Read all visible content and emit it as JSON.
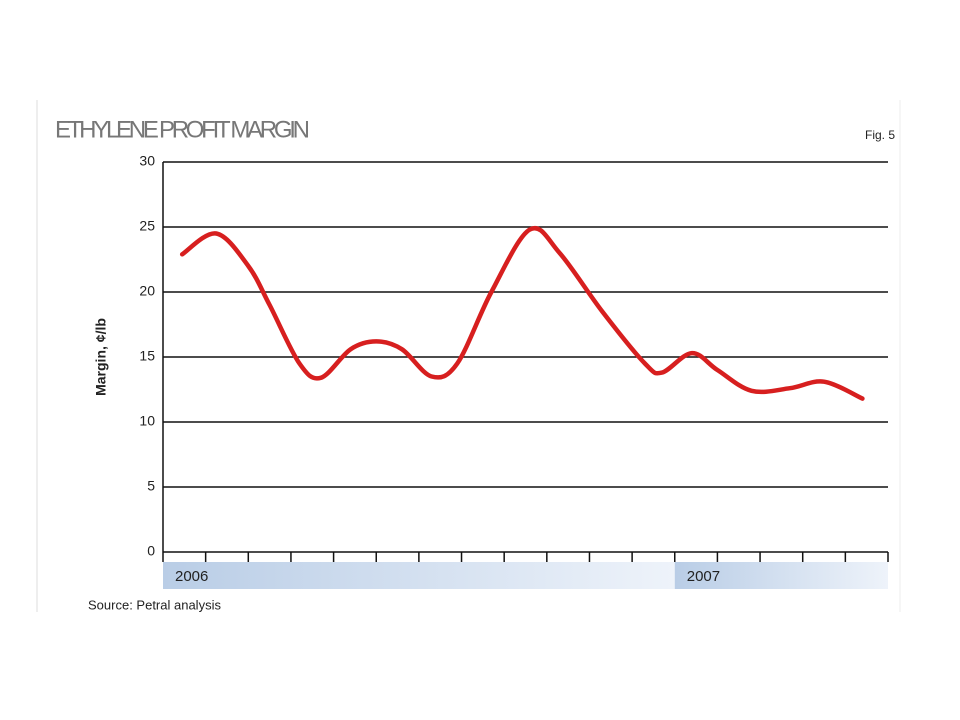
{
  "chart_data": {
    "type": "line",
    "title": "ETHYLENE PROFIT MARGIN",
    "figure_label": "Fig. 5",
    "y_label": "Margin, ¢/lb",
    "source": "Source: Petral analysis",
    "periods": [
      {
        "label": "2006",
        "start": 0,
        "end": 12
      },
      {
        "label": "2007",
        "start": 12,
        "end": 17
      }
    ],
    "x": [
      0.45,
      1.25,
      2,
      2.5,
      3.2,
      3.7,
      4.4,
      5,
      5.6,
      6.3,
      6.9,
      7.7,
      8.6,
      9.3,
      10.3,
      11.3,
      11.7,
      12.4,
      13,
      13.8,
      14.7,
      15.5,
      16.4
    ],
    "values": [
      22.9,
      24.5,
      22,
      19,
      14.5,
      13.4,
      15.6,
      16.2,
      15.6,
      13.5,
      14.5,
      20,
      24.8,
      23,
      18.5,
      14.5,
      13.8,
      15.3,
      14,
      12.4,
      12.6,
      13.1,
      11.8
    ],
    "color": "#d71f1f",
    "xlim": [
      0,
      17
    ],
    "xticks": [
      0,
      1,
      2,
      3,
      4,
      5,
      6,
      7,
      8,
      9,
      10,
      11,
      12,
      13,
      14,
      15,
      16,
      17
    ],
    "ylim": [
      0,
      30
    ],
    "yticks": [
      0,
      5,
      10,
      15,
      20,
      25,
      30
    ],
    "grid": true
  }
}
